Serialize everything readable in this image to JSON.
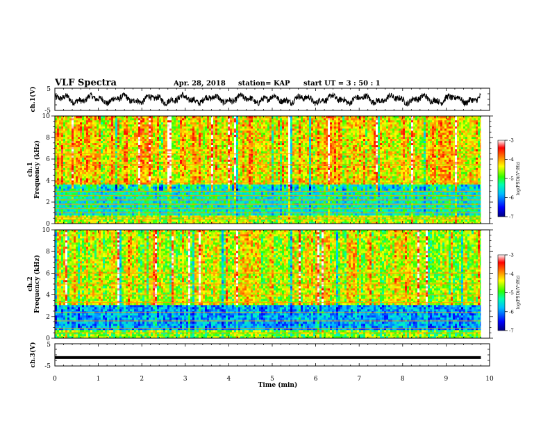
{
  "header": {
    "title": "VLF Spectra",
    "date": "Apr. 28, 2018",
    "station": "station= KAP",
    "start": "start  UT  =   3  : 50 : 1"
  },
  "colors": {
    "background": "#ffffff",
    "axis": "#000000",
    "colormap": [
      "#00007f",
      "#0000ff",
      "#00bfff",
      "#00ffb0",
      "#2fff00",
      "#ffff00",
      "#ff7f00",
      "#ff0000",
      "#ffffff"
    ]
  },
  "chart_data": [
    {
      "type": "line",
      "name": "channel-1-waveform",
      "ylabel": "ch.1(V)",
      "ylim": [
        -5,
        5
      ],
      "yticks": [
        "5",
        "-5"
      ],
      "xlim": [
        0,
        10
      ],
      "summary": {
        "mean_level": 0.0,
        "amplitude": 2.5,
        "x_end": 9.8
      }
    },
    {
      "type": "heatmap",
      "name": "channel-1-spectrogram",
      "ylabel": "ch.1\nFrequency  (kHz)",
      "ylabel_lines": [
        "ch.1",
        "Frequency  (kHz)"
      ],
      "ylim": [
        0,
        10
      ],
      "yticks": [
        "0",
        "2",
        "4",
        "6",
        "8",
        "10"
      ],
      "xlim": [
        0,
        10
      ],
      "x_end": 9.8,
      "colorbar": {
        "label": "log(PSD)(V²/Hz)",
        "ticks": [
          "-3",
          "-4",
          "-5",
          "-6",
          "-7"
        ],
        "range": [
          -7,
          -3
        ]
      },
      "bands_khz": [
        {
          "from": 0.0,
          "to": 0.8,
          "level": -4.6
        },
        {
          "from": 0.8,
          "to": 3.6,
          "level": -5.4
        },
        {
          "from": 3.6,
          "to": 10.0,
          "level": -4.2
        }
      ],
      "lines_khz": [
        0.4,
        0.6,
        1.0,
        1.4,
        1.8,
        2.2,
        2.6,
        3.0,
        3.8,
        5.5,
        6.5
      ]
    },
    {
      "type": "heatmap",
      "name": "channel-2-spectrogram",
      "ylabel": "ch.2\nFrequency  (kHz)",
      "ylabel_lines": [
        "ch.2",
        "Frequency  (kHz)"
      ],
      "ylim": [
        0,
        10
      ],
      "yticks": [
        "0",
        "2",
        "4",
        "6",
        "8",
        "10"
      ],
      "xlim": [
        0,
        10
      ],
      "x_end": 9.8,
      "colorbar": {
        "label": "log(PSD)(V²/Hz)",
        "ticks": [
          "-3",
          "-4",
          "-5",
          "-6",
          "-7"
        ],
        "range": [
          -7,
          -3
        ]
      },
      "bands_khz": [
        {
          "from": 0.0,
          "to": 0.8,
          "level": -4.8
        },
        {
          "from": 0.8,
          "to": 3.0,
          "level": -5.9
        },
        {
          "from": 3.0,
          "to": 10.0,
          "level": -4.5
        }
      ],
      "lines_khz": [
        0.5,
        0.9,
        1.6,
        2.4,
        3.3,
        4.0,
        5.0,
        6.0
      ]
    },
    {
      "type": "line",
      "name": "channel-3-waveform",
      "ylabel": "ch.3(V)",
      "ylim": [
        -5,
        5
      ],
      "yticks": [
        "5",
        "-5"
      ],
      "xlim": [
        0,
        10
      ],
      "summary": {
        "mean_level": -1.2,
        "amplitude": 0.2,
        "x_end": 9.8
      }
    }
  ],
  "xaxis": {
    "label": "Time  (min)",
    "ticks": [
      "0",
      "1",
      "2",
      "3",
      "4",
      "5",
      "6",
      "7",
      "8",
      "9",
      "10"
    ],
    "range": [
      0,
      10
    ]
  }
}
